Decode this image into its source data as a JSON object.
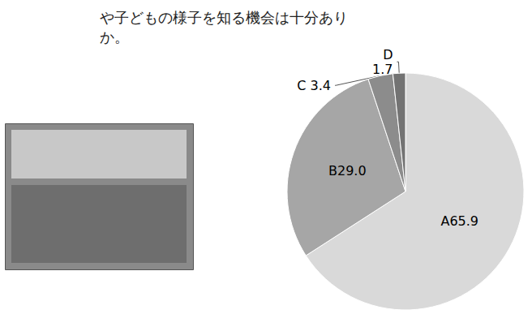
{
  "chart_data": {
    "type": "pie",
    "title": "や子どもの様子を知る機会は十分あり\nか。",
    "categories": [
      "A",
      "B",
      "C",
      "D"
    ],
    "values": [
      65.9,
      29.0,
      3.4,
      1.7
    ],
    "value_labels": [
      "65.9",
      "29.0",
      "3.4",
      "1.7"
    ],
    "colors": [
      "#d9d9d9",
      "#a6a6a6",
      "#8c8c8c",
      "#737373"
    ],
    "data_labels": true
  }
}
